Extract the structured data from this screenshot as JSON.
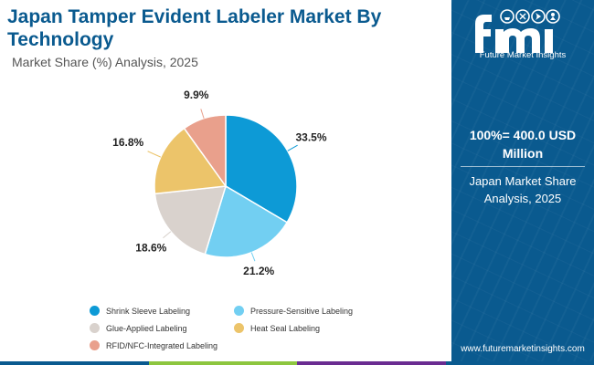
{
  "title": "Japan Tamper Evident Labeler Market By Technology",
  "subtitle": "Market Share (%) Analysis, 2025",
  "chart_data": {
    "type": "pie",
    "title": "Japan Tamper Evident Labeler Market By Technology",
    "subtitle": "Market Share (%) Analysis, 2025",
    "unit": "%",
    "slices": [
      {
        "label": "Shrink Sleeve Labeling",
        "value": 33.5,
        "display": "33.5%",
        "color": "#0d9ad6"
      },
      {
        "label": "Pressure-Sensitive Labeling",
        "value": 21.2,
        "display": "21.2%",
        "color": "#72cff2"
      },
      {
        "label": "Glue-Applied Labeling",
        "value": 18.6,
        "display": "18.6%",
        "color": "#d9d2cd"
      },
      {
        "label": "Heat Seal Labeling",
        "value": 16.8,
        "display": "16.8%",
        "color": "#ecc46a"
      },
      {
        "label": "RFID/NFC-Integrated Labeling",
        "value": 9.9,
        "display": "9.9%",
        "color": "#e9a08c"
      }
    ],
    "legend_position": "bottom"
  },
  "panel": {
    "background": "#0a5a8f",
    "logo_text": "Future Market Insights",
    "total": "100%= 400.0 USD Million",
    "share_label": "Japan Market Share Analysis, 2025",
    "website": "www.futuremarketinsights.com"
  },
  "bottom_stripe_colors": [
    "#0a5a8f",
    "#8dc63f",
    "#6a2c91",
    "#0a5a8f"
  ]
}
